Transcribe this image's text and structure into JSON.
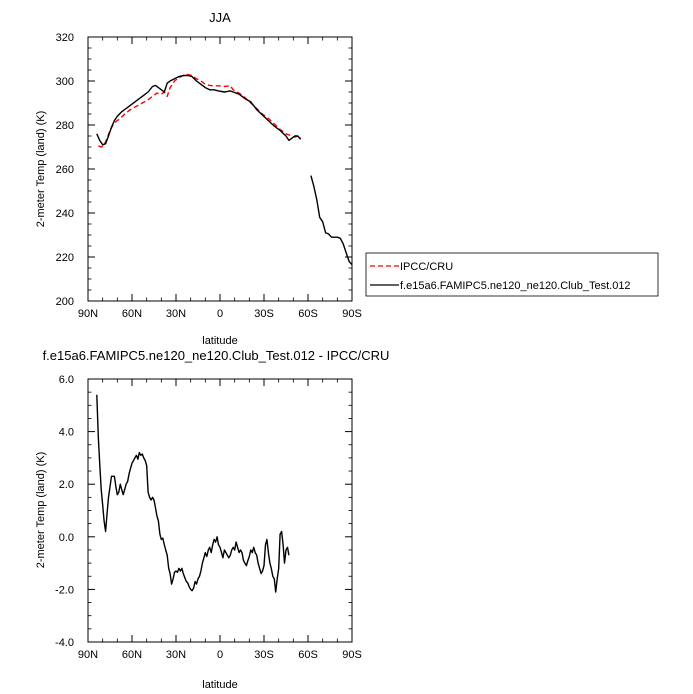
{
  "chart_data": [
    {
      "type": "line",
      "title": "JJA",
      "xlabel": "latitude",
      "ylabel": "2-meter Temp (land) (K)",
      "xlim": [
        90,
        -90
      ],
      "ylim": [
        200,
        320
      ],
      "xticks": [
        90,
        60,
        30,
        0,
        -30,
        -60,
        -90
      ],
      "xtick_labels": [
        "90N",
        "60N",
        "30N",
        "0",
        "30S",
        "60S",
        "90S"
      ],
      "yticks": [
        200,
        220,
        240,
        260,
        280,
        300,
        320
      ],
      "ytick_labels": [
        "200",
        "220",
        "240",
        "260",
        "280",
        "300",
        "320"
      ],
      "grid": false,
      "legend_position": "right",
      "series": [
        {
          "name": "IPCC/CRU",
          "color": "#ff0000",
          "dash": "dashed",
          "points": [
            [
              83,
              270.5
            ],
            [
              81,
              270
            ],
            [
              79,
              270.8
            ],
            [
              77,
              274
            ],
            [
              75,
              277.5
            ],
            [
              73,
              280
            ],
            [
              71,
              281.5
            ],
            [
              68,
              283
            ],
            [
              65,
              285
            ],
            [
              61,
              287
            ],
            [
              57,
              288.5
            ],
            [
              53,
              290
            ],
            [
              49,
              291.5
            ],
            [
              46,
              293
            ],
            [
              43,
              294.5
            ],
            [
              40,
              294
            ],
            [
              38,
              295
            ],
            [
              36,
              293
            ],
            [
              34,
              297
            ],
            [
              31,
              300
            ],
            [
              28,
              301.5
            ],
            [
              25,
              302.5
            ],
            [
              22,
              303
            ],
            [
              19,
              302.5
            ],
            [
              16,
              301
            ],
            [
              13,
              300
            ],
            [
              10,
              298.5
            ],
            [
              7,
              298
            ],
            [
              4,
              297.8
            ],
            [
              1,
              297.8
            ],
            [
              -3,
              297.5
            ],
            [
              -7,
              297.8
            ],
            [
              -9,
              296
            ],
            [
              -13,
              294.5
            ],
            [
              -17,
              292.5
            ],
            [
              -21,
              290
            ],
            [
              -25,
              287.5
            ],
            [
              -29,
              285
            ],
            [
              -33,
              283
            ],
            [
              -37,
              280.5
            ],
            [
              -41,
              278
            ],
            [
              -45,
              276
            ],
            [
              -47,
              275.5
            ],
            [
              -51,
              274.5
            ],
            [
              -53,
              275
            ],
            [
              -55,
              274
            ]
          ]
        },
        {
          "name": "f.e15a6.FAMIPC5.ne120_ne120.Club_Test.012",
          "color": "#000000",
          "dash": "solid",
          "points": [
            [
              84,
              276
            ],
            [
              82,
              273
            ],
            [
              80,
              271
            ],
            [
              78,
              271.5
            ],
            [
              76,
              275
            ],
            [
              74,
              279
            ],
            [
              72,
              282
            ],
            [
              70,
              284
            ],
            [
              67,
              286
            ],
            [
              64,
              287.5
            ],
            [
              61,
              289
            ],
            [
              58,
              290.5
            ],
            [
              55,
              292
            ],
            [
              52,
              293.5
            ],
            [
              49,
              295
            ],
            [
              46,
              297.5
            ],
            [
              44,
              298
            ],
            [
              41,
              296.5
            ],
            [
              38,
              295
            ],
            [
              36,
              299
            ],
            [
              34,
              300
            ],
            [
              31,
              301
            ],
            [
              28,
              302
            ],
            [
              25,
              302.5
            ],
            [
              22,
              302.5
            ],
            [
              19,
              302
            ],
            [
              16,
              300
            ],
            [
              13,
              298.5
            ],
            [
              10,
              297
            ],
            [
              7,
              296
            ],
            [
              4,
              296
            ],
            [
              1,
              295.5
            ],
            [
              -3,
              295
            ],
            [
              -7,
              295.5
            ],
            [
              -9,
              295
            ],
            [
              -13,
              294
            ],
            [
              -17,
              292
            ],
            [
              -21,
              290.5
            ],
            [
              -25,
              287
            ],
            [
              -29,
              284.5
            ],
            [
              -33,
              282
            ],
            [
              -37,
              279.5
            ],
            [
              -41,
              277.5
            ],
            [
              -45,
              275
            ],
            [
              -47,
              273
            ],
            [
              -49,
              274
            ],
            [
              -51,
              275
            ],
            [
              -53,
              275
            ],
            [
              -55,
              273.5
            ]
          ],
          "points_antarctica": [
            [
              -62,
              257
            ],
            [
              -64,
              252
            ],
            [
              -66,
              246
            ],
            [
              -68,
              238
            ],
            [
              -70,
              236
            ],
            [
              -72,
              231
            ],
            [
              -74,
              230.5
            ],
            [
              -76,
              229
            ],
            [
              -78,
              229
            ],
            [
              -80,
              229
            ],
            [
              -82,
              228.5
            ],
            [
              -84,
              226
            ],
            [
              -86,
              222
            ],
            [
              -88,
              218
            ],
            [
              -90,
              216.5
            ]
          ]
        }
      ]
    },
    {
      "type": "line",
      "title": "f.e15a6.FAMIPC5.ne120_ne120.Club_Test.012 - IPCC/CRU",
      "xlabel": "latitude",
      "ylabel": "2-meter Temp (land) (K)",
      "xlim": [
        90,
        -90
      ],
      "ylim": [
        -4,
        6
      ],
      "xticks": [
        90,
        60,
        30,
        0,
        -30,
        -60,
        -90
      ],
      "xtick_labels": [
        "90N",
        "60N",
        "30N",
        "0",
        "30S",
        "60S",
        "90S"
      ],
      "yticks": [
        -4,
        -2,
        0,
        2,
        4,
        6
      ],
      "ytick_labels": [
        "-4.0",
        "-2.0",
        "0.0",
        "2.0",
        "4.0",
        "6.0"
      ],
      "grid": false,
      "series": [
        {
          "color": "#000000",
          "dash": "solid",
          "points": [
            [
              84,
              5.4
            ],
            [
              83,
              3.8
            ],
            [
              82,
              2.8
            ],
            [
              81,
              1.8
            ],
            [
              80,
              1.2
            ],
            [
              79,
              0.6
            ],
            [
              78,
              0.2
            ],
            [
              77,
              0.9
            ],
            [
              76,
              1.5
            ],
            [
              75,
              1.9
            ],
            [
              74,
              2.3
            ],
            [
              73,
              2.3
            ],
            [
              72,
              2.3
            ],
            [
              71,
              1.9
            ],
            [
              70,
              1.6
            ],
            [
              69,
              1.7
            ],
            [
              68,
              2.0
            ],
            [
              67,
              1.8
            ],
            [
              66,
              1.6
            ],
            [
              65,
              1.8
            ],
            [
              64,
              2.0
            ],
            [
              63,
              2.1
            ],
            [
              62,
              2.4
            ],
            [
              61,
              2.6
            ],
            [
              60,
              2.8
            ],
            [
              59,
              2.9
            ],
            [
              58,
              3.0
            ],
            [
              57,
              3.1
            ],
            [
              56,
              2.95
            ],
            [
              55,
              3.2
            ],
            [
              54,
              3.1
            ],
            [
              53,
              3.15
            ],
            [
              52,
              3.0
            ],
            [
              51,
              2.9
            ],
            [
              50,
              2.7
            ],
            [
              49,
              1.7
            ],
            [
              48,
              1.5
            ],
            [
              47,
              1.4
            ],
            [
              46,
              1.5
            ],
            [
              45,
              1.4
            ],
            [
              44,
              1.1
            ],
            [
              43,
              0.8
            ],
            [
              42,
              0.6
            ],
            [
              41,
              0.1
            ],
            [
              40,
              -0.1
            ],
            [
              39,
              -0.05
            ],
            [
              38,
              -0.3
            ],
            [
              37,
              -0.5
            ],
            [
              36,
              -0.7
            ],
            [
              35,
              -1.2
            ],
            [
              34,
              -1.4
            ],
            [
              33,
              -1.8
            ],
            [
              32,
              -1.6
            ],
            [
              31,
              -1.35
            ],
            [
              30,
              -1.3
            ],
            [
              29,
              -1.35
            ],
            [
              28,
              -1.2
            ],
            [
              27,
              -1.3
            ],
            [
              26,
              -1.2
            ],
            [
              25,
              -1.4
            ],
            [
              24,
              -1.55
            ],
            [
              23,
              -1.7
            ],
            [
              22,
              -1.75
            ],
            [
              21,
              -1.9
            ],
            [
              20,
              -2.0
            ],
            [
              19,
              -2.05
            ],
            [
              18,
              -1.95
            ],
            [
              17,
              -1.7
            ],
            [
              16,
              -1.8
            ],
            [
              15,
              -1.6
            ],
            [
              14,
              -1.5
            ],
            [
              13,
              -1.3
            ],
            [
              12,
              -1.0
            ],
            [
              11,
              -0.8
            ],
            [
              10,
              -0.6
            ],
            [
              9,
              -0.75
            ],
            [
              8,
              -0.5
            ],
            [
              7,
              -0.4
            ],
            [
              6,
              -0.6
            ],
            [
              5,
              -0.3
            ],
            [
              4,
              -0.1
            ],
            [
              3,
              -0.2
            ],
            [
              2,
              0.0
            ],
            [
              1,
              -0.3
            ],
            [
              0,
              -0.4
            ],
            [
              -1,
              -0.6
            ],
            [
              -2,
              -0.8
            ],
            [
              -3,
              -0.5
            ],
            [
              -4,
              -0.6
            ],
            [
              -5,
              -0.7
            ],
            [
              -6,
              -0.8
            ],
            [
              -7,
              -0.7
            ],
            [
              -8,
              -0.5
            ],
            [
              -9,
              -0.4
            ],
            [
              -10,
              -0.5
            ],
            [
              -11,
              -0.2
            ],
            [
              -12,
              -0.4
            ],
            [
              -13,
              -0.6
            ],
            [
              -14,
              -0.5
            ],
            [
              -15,
              -0.6
            ],
            [
              -16,
              -0.9
            ],
            [
              -17,
              -1.0
            ],
            [
              -18,
              -1.1
            ],
            [
              -19,
              -0.9
            ],
            [
              -20,
              -0.75
            ],
            [
              -21,
              -0.5
            ],
            [
              -22,
              -0.6
            ],
            [
              -23,
              -0.4
            ],
            [
              -24,
              -0.6
            ],
            [
              -25,
              -0.7
            ],
            [
              -26,
              -1.0
            ],
            [
              -27,
              -1.2
            ],
            [
              -28,
              -1.4
            ],
            [
              -29,
              -1.3
            ],
            [
              -30,
              -1.1
            ],
            [
              -31,
              -0.3
            ],
            [
              -32,
              -0.1
            ],
            [
              -33,
              -0.6
            ],
            [
              -34,
              -1.0
            ],
            [
              -35,
              -1.2
            ],
            [
              -36,
              -1.5
            ],
            [
              -37,
              -1.6
            ],
            [
              -38,
              -2.1
            ],
            [
              -39,
              -1.6
            ],
            [
              -40,
              -1.2
            ],
            [
              -41,
              0.1
            ],
            [
              -42,
              0.2
            ],
            [
              -43,
              -0.3
            ],
            [
              -44,
              -1.0
            ],
            [
              -45,
              -0.5
            ],
            [
              -46,
              -0.4
            ],
            [
              -47,
              -0.7
            ]
          ]
        }
      ]
    }
  ]
}
